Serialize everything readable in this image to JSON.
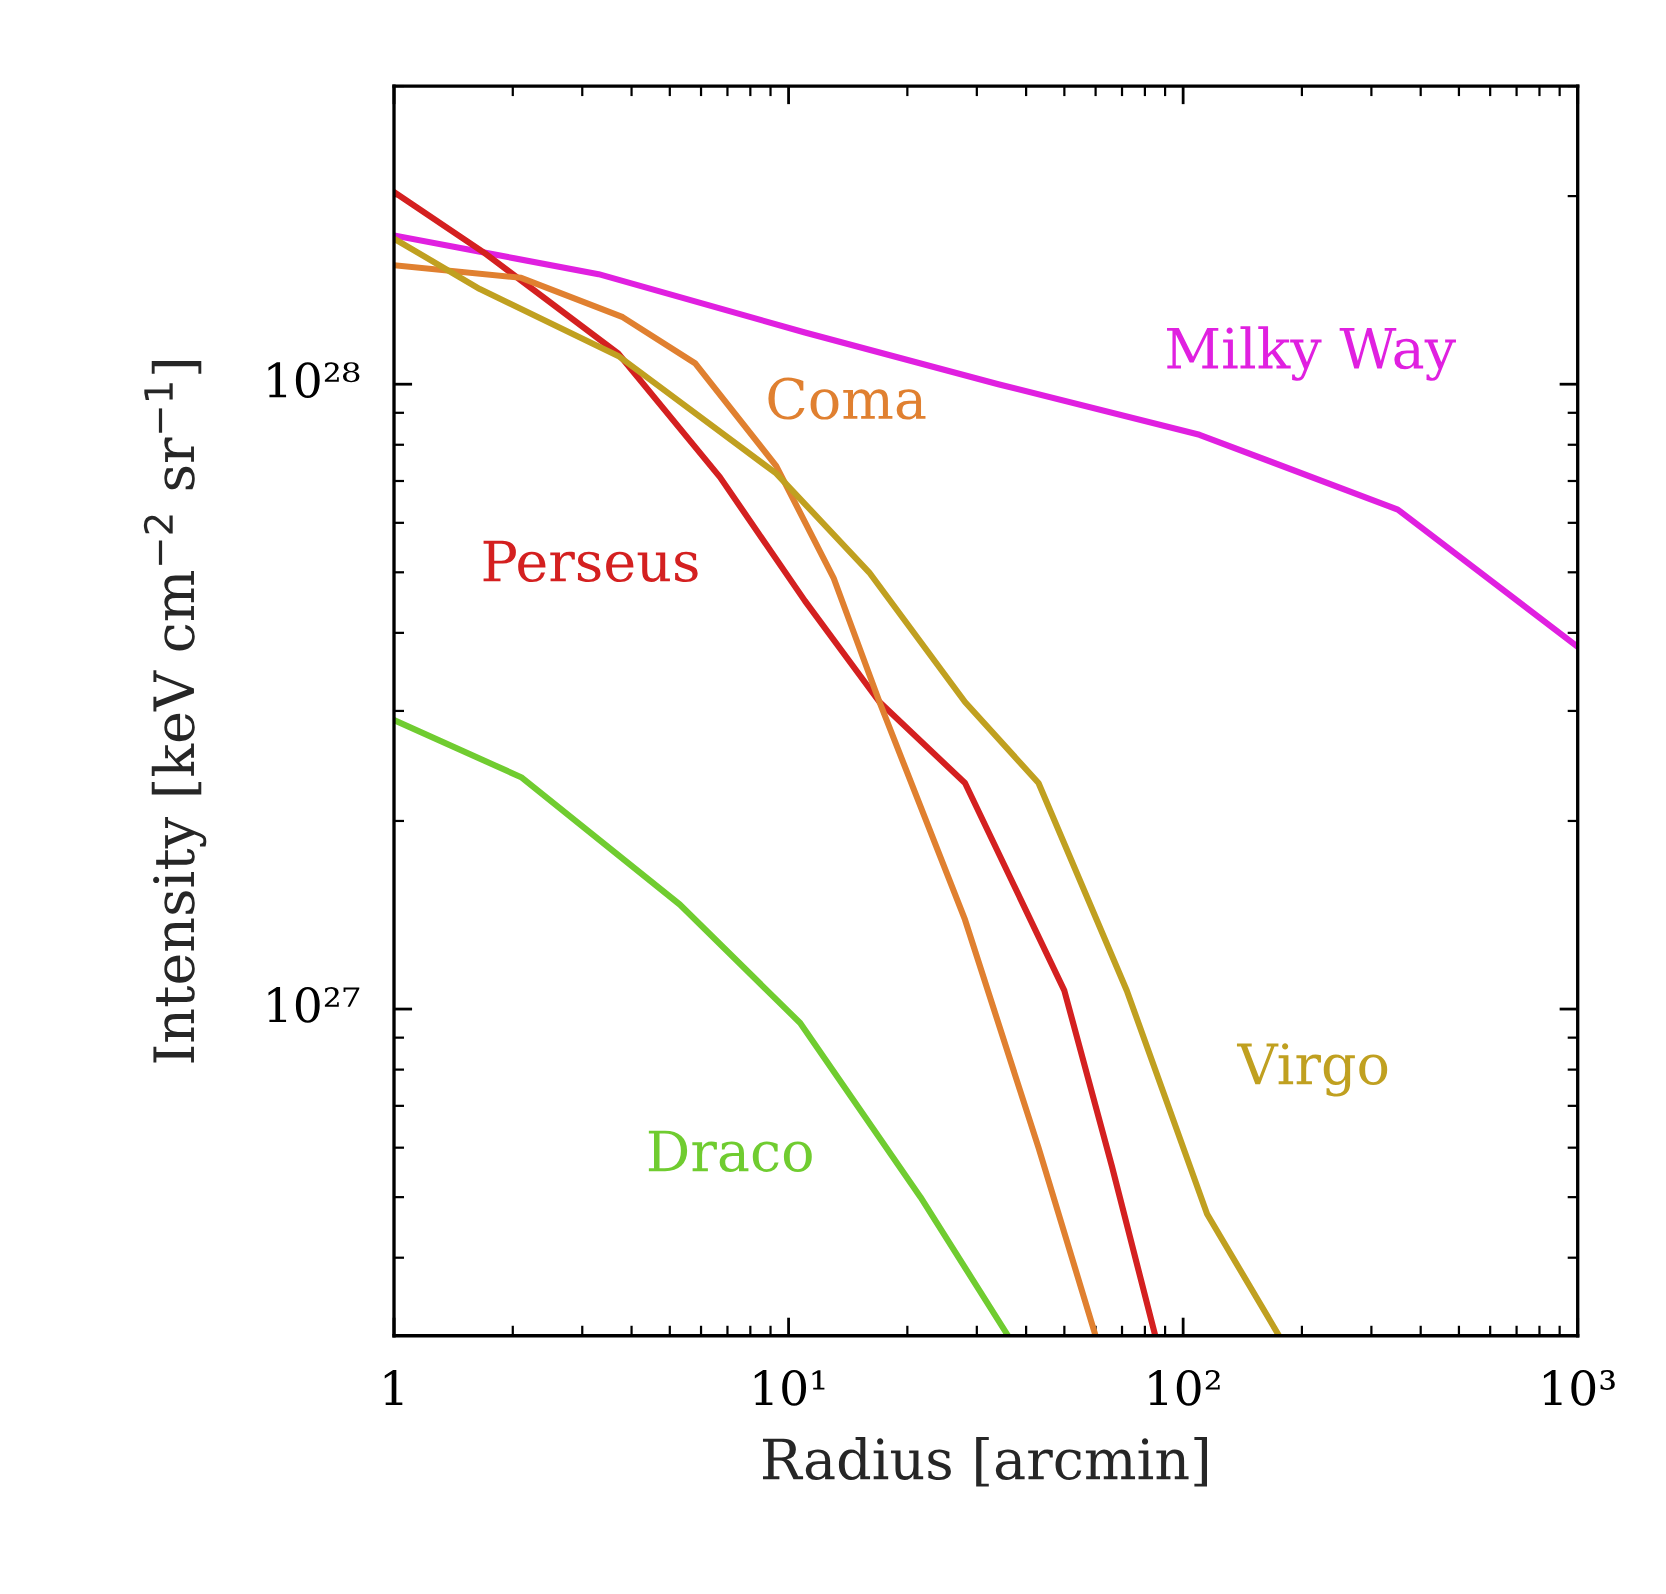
{
  "chart_data": {
    "type": "line",
    "xlabel": "Radius [arcmin]",
    "ylabel": "Intensity [keV cm$^{−2}$ sr$^{−1}$]",
    "log": "xy",
    "grid": false,
    "legend": false,
    "xlim": [
      1,
      1000
    ],
    "xticks": [
      1,
      {
        "value": 10,
        "label": "10¹"
      },
      {
        "value": 100,
        "label": "10²"
      },
      {
        "value": 1000,
        "label": "10³"
      }
    ],
    "ylim": [
      3e+26,
      3e+28
    ],
    "yticks": [
      {
        "value": 1e+27,
        "label": "10²⁷"
      },
      {
        "value": 1e+28,
        "label": "10²⁸"
      }
    ],
    "series": [
      {
        "name": "Milky Way",
        "color": "#e020e0",
        "x": [
          1,
          3.3,
          11,
          34,
          110,
          350,
          1000
        ],
        "values": [
          1.73e+28,
          1.5e+28,
          1.21e+28,
          1e+28,
          8.3e+27,
          6.3e+27,
          3.8e+27
        ]
      },
      {
        "name": "Perseus",
        "color": "#d42020",
        "x": [
          1,
          1.7,
          3.7,
          6.7,
          11,
          17,
          28,
          50,
          66,
          85
        ],
        "values": [
          2.03e+28,
          1.62e+28,
          1.12e+28,
          7.1e+27,
          4.5e+27,
          3.1e+27,
          2.3e+27,
          1.07e+27,
          5.6e+26,
          3e+26
        ]
      },
      {
        "name": "Coma",
        "color": "#e08030",
        "x": [
          1,
          2.1,
          3.8,
          5.8,
          9.3,
          13,
          17,
          28,
          43,
          60
        ],
        "values": [
          1.55e+28,
          1.48e+28,
          1.28e+28,
          1.08e+28,
          7.4e+27,
          4.9e+27,
          3.1e+27,
          1.39e+27,
          6e+26,
          3e+26
        ]
      },
      {
        "name": "Virgo",
        "color": "#c0a020",
        "x": [
          1,
          1.65,
          3.7,
          9.3,
          16,
          28,
          43,
          72,
          115,
          175
        ],
        "values": [
          1.71e+28,
          1.42e+28,
          1.11e+28,
          7.2e+27,
          5e+27,
          3.1e+27,
          2.3e+27,
          1.07e+27,
          4.7e+26,
          3e+26
        ]
      },
      {
        "name": "Draco",
        "color": "#70cc30",
        "x": [
          1,
          2.1,
          5.3,
          10.7,
          21.6,
          36
        ],
        "values": [
          2.9e+27,
          2.35e+27,
          1.47e+27,
          9.5e+26,
          5e+26,
          3e+26
        ]
      }
    ]
  }
}
